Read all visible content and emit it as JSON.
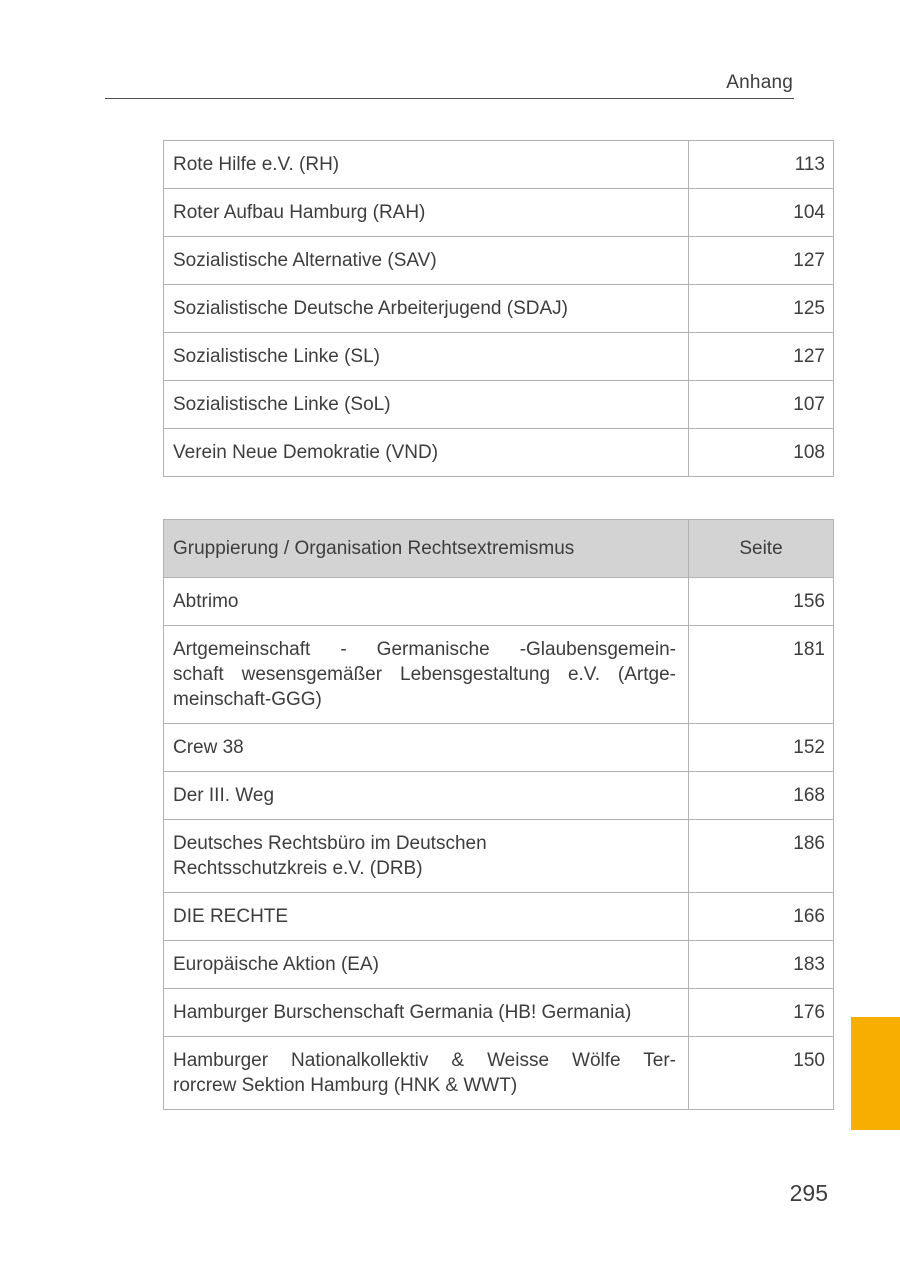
{
  "page": {
    "running_header": "Anhang",
    "page_number": "295"
  },
  "accent_color": "#f8ae00",
  "table_linksextremismus": {
    "rows": [
      {
        "name": "Rote Hilfe e.V. (RH)",
        "page": "113"
      },
      {
        "name": "Roter Aufbau Hamburg (RAH)",
        "page": "104"
      },
      {
        "name": "Sozialistische Alternative (SAV)",
        "page": "127"
      },
      {
        "name": "Sozialistische Deutsche Arbeiterjugend (SDAJ)",
        "page": "125"
      },
      {
        "name": "Sozialistische Linke (SL)",
        "page": "127"
      },
      {
        "name": "Sozialistische Linke (SoL)",
        "page": "107"
      },
      {
        "name": "Verein Neue Demokratie (VND)",
        "page": "108"
      }
    ]
  },
  "table_rechtsextremismus": {
    "header": {
      "org": "Gruppierung / Organisation Rechtsextremismus",
      "page": "Seite"
    },
    "rows": [
      {
        "name": "Abtrimo",
        "page": "156"
      },
      {
        "name_lines": [
          "Artgemeinschaft - Germanische -Glaubensgemein-",
          "schaft wesensgemäßer Lebensgestaltung e.V. (Artge-",
          "meinschaft-GGG)"
        ],
        "page": "181"
      },
      {
        "name": "Crew 38",
        "page": "152"
      },
      {
        "name": "Der III. Weg",
        "page": "168"
      },
      {
        "name_lines": [
          "Deutsches Rechtsbüro im Deutschen",
          "Rechtsschutzkreis e.V. (DRB)"
        ],
        "page": "186"
      },
      {
        "name": "DIE RECHTE",
        "page": "166"
      },
      {
        "name": "Europäische Aktion (EA)",
        "page": "183"
      },
      {
        "name": "Hamburger Burschenschaft Germania (HB! Germania)",
        "page": "176"
      },
      {
        "name_lines": [
          "Hamburger Nationalkollektiv & Weisse Wölfe Ter-",
          "rorcrew Sektion Hamburg (HNK & WWT)"
        ],
        "page": "150"
      }
    ]
  }
}
